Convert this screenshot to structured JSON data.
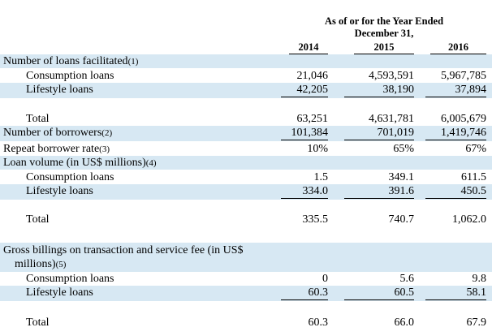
{
  "header": {
    "line1": "As of or for the Year Ended",
    "line2": "December 31,",
    "years": [
      "2014",
      "2015",
      "2016"
    ]
  },
  "rows": [
    {
      "label": "Number of loans facilitated",
      "fn": "(1)",
      "values": [
        "",
        "",
        ""
      ]
    },
    {
      "label": "Consumption loans",
      "values": [
        "21,046",
        "4,593,591",
        "5,967,785"
      ]
    },
    {
      "label": "Lifestyle loans",
      "values": [
        "42,205",
        "38,190",
        "37,894"
      ]
    },
    {
      "label": "Total",
      "values": [
        "63,251",
        "4,631,781",
        "6,005,679"
      ]
    },
    {
      "label": "Number of borrowers",
      "fn": "(2)",
      "values": [
        "101,384",
        "701,019",
        "1,419,746"
      ]
    },
    {
      "label": "Repeat borrower rate",
      "fn": "(3)",
      "values": [
        "10%",
        "65%",
        "67%"
      ]
    },
    {
      "label": "Loan volume (in US$ millions)",
      "fn": "(4)",
      "values": [
        "",
        "",
        ""
      ]
    },
    {
      "label": "Consumption loans",
      "values": [
        "1.5",
        "349.1",
        "611.5"
      ]
    },
    {
      "label": "Lifestyle loans",
      "values": [
        "334.0",
        "391.6",
        "450.5"
      ]
    },
    {
      "label": "Total",
      "values": [
        "335.5",
        "740.7",
        "1,062.0"
      ]
    },
    {
      "label": "Gross billings on transaction and service fee (in US$",
      "values": [
        "",
        "",
        ""
      ]
    },
    {
      "label": "millions)",
      "fn": "(5)",
      "values": [
        "",
        "",
        ""
      ]
    },
    {
      "label": "Consumption loans",
      "values": [
        "0",
        "5.6",
        "9.8"
      ]
    },
    {
      "label": "Lifestyle loans",
      "values": [
        "60.3",
        "60.5",
        "58.1"
      ]
    },
    {
      "label": "Total",
      "values": [
        "60.3",
        "66.0",
        "67.9"
      ]
    }
  ]
}
